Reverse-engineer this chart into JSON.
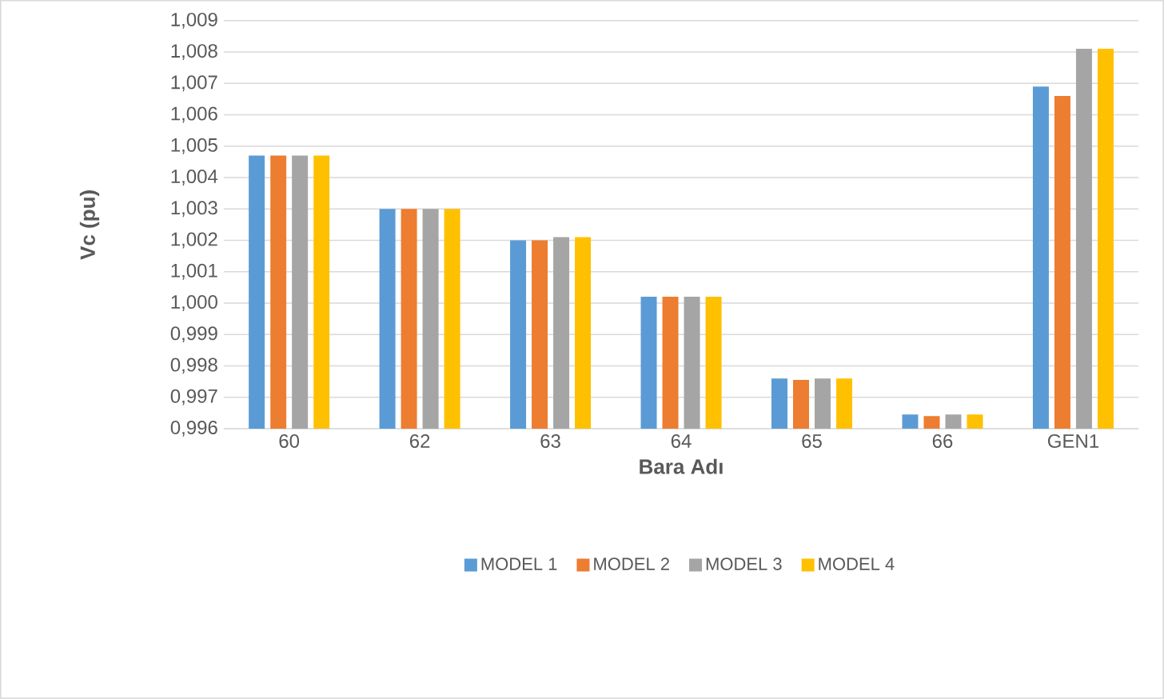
{
  "chart_data": {
    "type": "bar",
    "xlabel": "Bara Adı",
    "ylabel": "Vc (pu)",
    "categories": [
      "60",
      "62",
      "63",
      "64",
      "65",
      "66",
      "GEN1"
    ],
    "series": [
      {
        "name": "MODEL 1",
        "color": "#5b9bd5",
        "values": [
          1.0047,
          1.003,
          1.002,
          1.0002,
          0.9976,
          0.99645,
          1.0069
        ]
      },
      {
        "name": "MODEL 2",
        "color": "#ed7d31",
        "values": [
          1.0047,
          1.003,
          1.002,
          1.0002,
          0.99755,
          0.9964,
          1.0066
        ]
      },
      {
        "name": "MODEL 3",
        "color": "#a5a5a5",
        "values": [
          1.0047,
          1.003,
          1.0021,
          1.0002,
          0.9976,
          0.99645,
          1.0081
        ]
      },
      {
        "name": "MODEL 4",
        "color": "#ffc000",
        "values": [
          1.0047,
          1.003,
          1.0021,
          1.0002,
          0.9976,
          0.99645,
          1.0081
        ]
      }
    ],
    "ylim": [
      0.996,
      1.009
    ],
    "yticks": [
      {
        "value": 0.996,
        "label": "0,996"
      },
      {
        "value": 0.997,
        "label": "0,997"
      },
      {
        "value": 0.998,
        "label": "0,998"
      },
      {
        "value": 0.999,
        "label": "0,999"
      },
      {
        "value": 1.0,
        "label": "1,000"
      },
      {
        "value": 1.001,
        "label": "1,001"
      },
      {
        "value": 1.002,
        "label": "1,002"
      },
      {
        "value": 1.003,
        "label": "1,003"
      },
      {
        "value": 1.004,
        "label": "1,004"
      },
      {
        "value": 1.005,
        "label": "1,005"
      },
      {
        "value": 1.006,
        "label": "1,006"
      },
      {
        "value": 1.007,
        "label": "1,007"
      },
      {
        "value": 1.008,
        "label": "1,008"
      },
      {
        "value": 1.009,
        "label": "1,009"
      }
    ],
    "grid": "y",
    "legend": "bottom"
  }
}
